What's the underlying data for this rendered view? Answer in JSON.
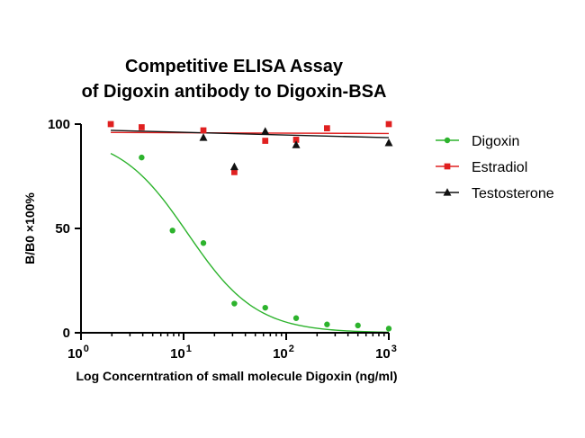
{
  "chart_data": {
    "type": "scatter",
    "title_line1": "Competitive ELISA Assay",
    "title_line2": "of Digoxin antibody to Digoxin-BSA",
    "xlabel": "Log Concerntration of small molecule Digoxin (ng/ml)",
    "ylabel": "B/B0 ×100%",
    "x_scale": "log",
    "xlim": [
      1,
      1000
    ],
    "ylim": [
      0,
      100
    ],
    "x_ticks": [
      {
        "value": 1,
        "base": "10",
        "exp": "0"
      },
      {
        "value": 10,
        "base": "10",
        "exp": "1"
      },
      {
        "value": 100,
        "base": "10",
        "exp": "2"
      },
      {
        "value": 1000,
        "base": "10",
        "exp": "3"
      }
    ],
    "y_ticks": [
      {
        "value": 0,
        "label": "0"
      },
      {
        "value": 50,
        "label": "50"
      },
      {
        "value": 100,
        "label": "100"
      }
    ],
    "grid": false,
    "legend_position": "right",
    "series": [
      {
        "name": "Digoxin",
        "color": "#2db32d",
        "marker": "circle",
        "points": [
          {
            "x": 1.95,
            "y": 100
          },
          {
            "x": 3.9,
            "y": 84
          },
          {
            "x": 7.8,
            "y": 49
          },
          {
            "x": 15.6,
            "y": 43
          },
          {
            "x": 31.25,
            "y": 14
          },
          {
            "x": 62.5,
            "y": 12
          },
          {
            "x": 125,
            "y": 7
          },
          {
            "x": 250,
            "y": 4
          },
          {
            "x": 500,
            "y": 3.5
          },
          {
            "x": 1000,
            "y": 2
          }
        ],
        "fit_curve": {
          "model": "four-parameter-logistic",
          "top": 95,
          "bottom": 0,
          "ec50": 11,
          "hill": 1.3
        }
      },
      {
        "name": "Estradiol",
        "color": "#e02020",
        "marker": "square",
        "points": [
          {
            "x": 1.95,
            "y": 100
          },
          {
            "x": 3.9,
            "y": 98.5
          },
          {
            "x": 15.6,
            "y": 97
          },
          {
            "x": 31.25,
            "y": 77
          },
          {
            "x": 62.5,
            "y": 92
          },
          {
            "x": 125,
            "y": 92.5
          },
          {
            "x": 250,
            "y": 98
          },
          {
            "x": 1000,
            "y": 100
          }
        ],
        "fit_line": {
          "y_start": 96,
          "y_end": 95.5
        }
      },
      {
        "name": "Testosterone",
        "color": "#111111",
        "marker": "triangle",
        "points": [
          {
            "x": 15.6,
            "y": 93.5
          },
          {
            "x": 31.25,
            "y": 79.5
          },
          {
            "x": 62.5,
            "y": 96.5
          },
          {
            "x": 125,
            "y": 90
          },
          {
            "x": 1000,
            "y": 91
          }
        ],
        "fit_line": {
          "y_start": 97,
          "y_end": 93.5
        }
      }
    ]
  }
}
